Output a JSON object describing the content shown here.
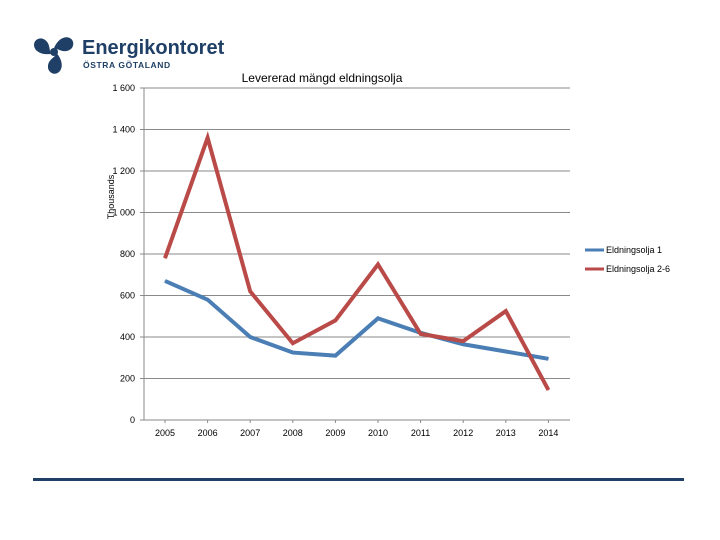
{
  "logo": {
    "name": "Energikontoret",
    "sub": "ÖSTRA GÖTALAND",
    "color": "#1f3f66"
  },
  "chart_data": {
    "type": "line",
    "title": "Levererad mängd eldningsolja",
    "xlabel": "",
    "ylabel": "Thousands",
    "categories": [
      "2005",
      "2006",
      "2007",
      "2008",
      "2009",
      "2010",
      "2011",
      "2012",
      "2013",
      "2014"
    ],
    "ylim": [
      0,
      1600
    ],
    "yticks": [
      0,
      200,
      400,
      600,
      800,
      1000,
      1200,
      1400,
      1600
    ],
    "ytick_labels": [
      "0",
      "200",
      "400",
      "600",
      "800",
      "1 000",
      "1 200",
      "1 400",
      "1 600"
    ],
    "grid": true,
    "legend_position": "right",
    "series": [
      {
        "name": "Eldningsolja 1",
        "color": "#4a7eb4",
        "values": [
          670,
          580,
          400,
          325,
          310,
          490,
          420,
          365,
          330,
          295
        ]
      },
      {
        "name": "Eldningsolja 2-6",
        "color": "#b94a48",
        "values": [
          780,
          1360,
          620,
          370,
          480,
          750,
          415,
          380,
          525,
          145
        ]
      }
    ]
  },
  "footer": {
    "rule_color": "#1f3f66"
  }
}
